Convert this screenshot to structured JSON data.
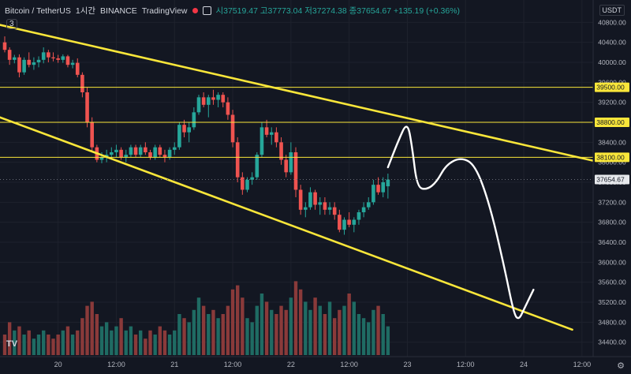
{
  "header": {
    "symbol": "Bitcoin / TetherUS",
    "interval": "1시간",
    "exchange": "BINANCE",
    "platform": "TradingView",
    "ohlc_label": "시37519.47 고37773.04 저37274.38 종37654.67 +135.19 (+0.36%)"
  },
  "badge": "3",
  "currency": "USDT",
  "tv_logo": "TV",
  "gear_icon": "gear-icon",
  "colors": {
    "up": "#26a69a",
    "down": "#ef5350",
    "line": "#f9e63a",
    "bg": "#131722",
    "grid": "#1e222d",
    "annotation": "#ffffff"
  },
  "chart_data": {
    "type": "candlestick",
    "y_axis": {
      "min": 34300,
      "max": 40900,
      "ticks": [
        40800,
        40400,
        40000,
        39600,
        39200,
        38800,
        38400,
        38000,
        37600,
        37200,
        36800,
        36400,
        36000,
        35600,
        35200,
        34800,
        34400
      ]
    },
    "x_axis": {
      "tick_labels": [
        "20",
        "12:00",
        "21",
        "12:00",
        "22",
        "12:00",
        "23",
        "12:00",
        "24",
        "12:00"
      ],
      "tick_bars": [
        11,
        23,
        35,
        47,
        59,
        71,
        83,
        95,
        107,
        119
      ],
      "bars_total": 120
    },
    "candles": [
      [
        40400,
        40520,
        40200,
        40250
      ],
      [
        40250,
        40300,
        39950,
        40050
      ],
      [
        40050,
        40150,
        39980,
        40100
      ],
      [
        40100,
        40160,
        39700,
        39800
      ],
      [
        39800,
        40100,
        39750,
        40050
      ],
      [
        40050,
        40200,
        39900,
        39950
      ],
      [
        39950,
        40100,
        39850,
        40000
      ],
      [
        40000,
        40120,
        39900,
        40050
      ],
      [
        40050,
        40300,
        39980,
        40200
      ],
      [
        40200,
        40250,
        40000,
        40100
      ],
      [
        40100,
        40200,
        40020,
        40080
      ],
      [
        40080,
        40150,
        39990,
        40050
      ],
      [
        40050,
        40160,
        39990,
        40120
      ],
      [
        40120,
        40150,
        39900,
        39950
      ],
      [
        39950,
        40050,
        39880,
        39990
      ],
      [
        39990,
        40080,
        39700,
        39750
      ],
      [
        39750,
        39800,
        39300,
        39400
      ],
      [
        39400,
        39500,
        38700,
        38800
      ],
      [
        38800,
        38900,
        38200,
        38300
      ],
      [
        38300,
        38350,
        38000,
        38050
      ],
      [
        38050,
        38200,
        37980,
        38100
      ],
      [
        38100,
        38250,
        38000,
        38150
      ],
      [
        38150,
        38300,
        38050,
        38200
      ],
      [
        38200,
        38350,
        38100,
        38250
      ],
      [
        38250,
        38300,
        38050,
        38100
      ],
      [
        38100,
        38250,
        38000,
        38150
      ],
      [
        38150,
        38350,
        38100,
        38300
      ],
      [
        38300,
        38350,
        38100,
        38150
      ],
      [
        38150,
        38350,
        38100,
        38300
      ],
      [
        38300,
        38400,
        38150,
        38200
      ],
      [
        38200,
        38250,
        38050,
        38100
      ],
      [
        38100,
        38350,
        38050,
        38300
      ],
      [
        38300,
        38350,
        38100,
        38150
      ],
      [
        38150,
        38250,
        38000,
        38100
      ],
      [
        38100,
        38300,
        38050,
        38250
      ],
      [
        38250,
        38400,
        38150,
        38300
      ],
      [
        38300,
        38800,
        38250,
        38750
      ],
      [
        38750,
        38850,
        38500,
        38600
      ],
      [
        38600,
        38800,
        38400,
        38700
      ],
      [
        38700,
        39100,
        38650,
        39000
      ],
      [
        39000,
        39350,
        38950,
        39300
      ],
      [
        39300,
        39400,
        39100,
        39150
      ],
      [
        39150,
        39350,
        38900,
        39300
      ],
      [
        39300,
        39450,
        39150,
        39250
      ],
      [
        39250,
        39400,
        39100,
        39350
      ],
      [
        39350,
        39400,
        39100,
        39200
      ],
      [
        39200,
        39300,
        38850,
        38950
      ],
      [
        38950,
        39050,
        38300,
        38400
      ],
      [
        38400,
        38500,
        37600,
        37700
      ],
      [
        37700,
        37800,
        37350,
        37450
      ],
      [
        37450,
        37700,
        37400,
        37650
      ],
      [
        37650,
        37800,
        37550,
        37700
      ],
      [
        37700,
        38200,
        37650,
        38150
      ],
      [
        38150,
        38800,
        38100,
        38700
      ],
      [
        38700,
        38850,
        38500,
        38550
      ],
      [
        38550,
        38700,
        38350,
        38600
      ],
      [
        38600,
        38700,
        38300,
        38400
      ],
      [
        38400,
        38500,
        37950,
        38050
      ],
      [
        38050,
        38150,
        37700,
        37800
      ],
      [
        37800,
        38400,
        37750,
        38200
      ],
      [
        38200,
        38300,
        37300,
        37450
      ],
      [
        37450,
        37550,
        36950,
        37050
      ],
      [
        37050,
        37200,
        36900,
        37100
      ],
      [
        37100,
        37500,
        37050,
        37400
      ],
      [
        37400,
        37450,
        37050,
        37150
      ],
      [
        37150,
        37300,
        36950,
        37200
      ],
      [
        37200,
        37300,
        36950,
        37050
      ],
      [
        37050,
        37200,
        36950,
        37100
      ],
      [
        37100,
        37200,
        36850,
        36950
      ],
      [
        36950,
        37050,
        36600,
        36650
      ],
      [
        36650,
        36900,
        36550,
        36850
      ],
      [
        36850,
        37000,
        36700,
        36750
      ],
      [
        36750,
        36900,
        36600,
        36850
      ],
      [
        36850,
        37050,
        36750,
        37000
      ],
      [
        37000,
        37200,
        36900,
        37100
      ],
      [
        37100,
        37300,
        37050,
        37200
      ],
      [
        37200,
        37650,
        37150,
        37550
      ],
      [
        37550,
        37700,
        37350,
        37400
      ],
      [
        37400,
        37700,
        37300,
        37600
      ],
      [
        37519.47,
        37773.04,
        37274.38,
        37654.67
      ]
    ],
    "volumes": [
      5,
      8,
      6,
      7,
      5,
      6,
      4,
      5,
      6,
      5,
      4,
      5,
      6,
      7,
      5,
      6,
      9,
      12,
      13,
      10,
      7,
      8,
      6,
      7,
      9,
      6,
      7,
      5,
      6,
      4,
      6,
      5,
      7,
      6,
      5,
      6,
      10,
      9,
      8,
      11,
      14,
      12,
      10,
      11,
      9,
      10,
      12,
      16,
      17,
      14,
      9,
      8,
      12,
      15,
      13,
      11,
      10,
      12,
      11,
      14,
      18,
      16,
      13,
      11,
      14,
      12,
      10,
      13,
      9,
      11,
      12,
      15,
      13,
      10,
      9,
      8,
      11,
      12,
      10,
      7
    ],
    "series": [
      {
        "type": "hline",
        "value": 39500,
        "label": "39500.00"
      },
      {
        "type": "hline",
        "value": 38800,
        "label": "38800.00"
      },
      {
        "type": "hline",
        "value": 38100,
        "label": "38100.00"
      },
      {
        "type": "trendline",
        "points": [
          [
            -1,
            40750
          ],
          [
            127.2,
            37900
          ]
        ]
      },
      {
        "type": "trendline",
        "points": [
          [
            -1,
            38900
          ],
          [
            117,
            34650
          ]
        ]
      },
      {
        "type": "hand-drawn",
        "points": [
          [
            79,
            37900
          ],
          [
            81,
            38400
          ],
          [
            83,
            38830
          ],
          [
            84,
            38300
          ],
          [
            85,
            37500
          ],
          [
            87,
            37450
          ],
          [
            89,
            37600
          ],
          [
            91,
            37950
          ],
          [
            94,
            38100
          ],
          [
            97,
            37950
          ],
          [
            100,
            37150
          ],
          [
            103,
            35900
          ],
          [
            105,
            34950
          ],
          [
            106,
            34850
          ],
          [
            107,
            35050
          ],
          [
            109,
            35450
          ]
        ]
      }
    ],
    "last_price": {
      "value": 37654.67,
      "label": "37654.67"
    }
  }
}
